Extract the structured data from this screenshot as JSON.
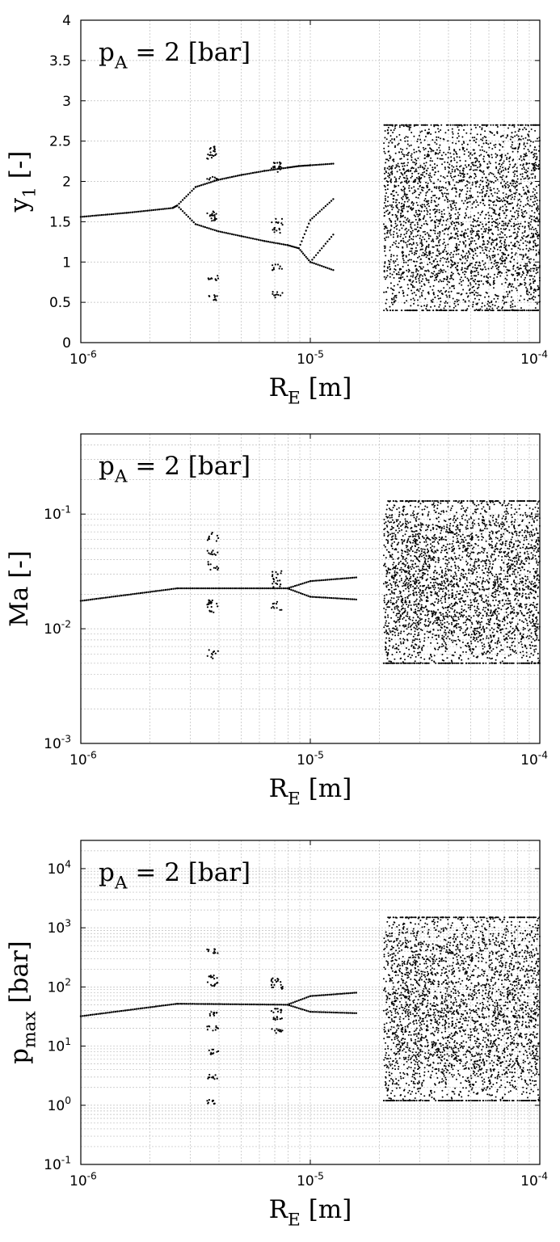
{
  "chart_data": [
    {
      "type": "scatter",
      "annotation": {
        "base": "p",
        "sub": "A",
        "rest": " = 2 [bar]"
      },
      "xlabel": {
        "base": "R",
        "sub": "E",
        "rest": " [m]"
      },
      "ylabel": {
        "base": "y",
        "sub": "1",
        "rest": " [-]"
      },
      "xscale": "log",
      "yscale": "linear",
      "xlim": [
        1e-06,
        0.0001
      ],
      "ylim": [
        0,
        4
      ],
      "xticks": [
        {
          "v": 1e-06,
          "label": "10",
          "exp": "-6"
        },
        {
          "v": 1e-05,
          "label": "10",
          "exp": "-5"
        },
        {
          "v": 0.0001,
          "label": "10",
          "exp": "-4"
        }
      ],
      "yticks": [
        {
          "v": 0,
          "label": "0"
        },
        {
          "v": 0.5,
          "label": "0.5"
        },
        {
          "v": 1,
          "label": "1"
        },
        {
          "v": 1.5,
          "label": "1.5"
        },
        {
          "v": 2,
          "label": "2"
        },
        {
          "v": 2.5,
          "label": "2.5"
        },
        {
          "v": 3,
          "label": "3"
        },
        {
          "v": 3.5,
          "label": "3.5"
        },
        {
          "v": 4,
          "label": "4"
        }
      ],
      "grid": true,
      "series": [
        {
          "values": [
            {
              "logR": -6.0,
              "y": [
                1.56
              ]
            },
            {
              "logR": -5.8,
              "y": [
                1.61
              ]
            },
            {
              "logR": -5.6,
              "y": [
                1.67
              ]
            },
            {
              "logR": -5.58,
              "y": [
                1.7
              ]
            },
            {
              "logR": -5.5,
              "y": [
                1.93,
                1.47
              ]
            },
            {
              "logR": -5.4,
              "y": [
                2.02,
                1.38
              ]
            },
            {
              "logR": -5.3,
              "y": [
                2.08,
                1.32
              ]
            },
            {
              "logR": -5.2,
              "y": [
                2.13,
                1.26
              ]
            },
            {
              "logR": -5.1,
              "y": [
                2.17,
                1.21
              ]
            },
            {
              "logR": -5.05,
              "y": [
                2.19,
                1.17
              ]
            },
            {
              "logR": -5.0,
              "y": [
                2.2,
                1.52,
                1.0
              ]
            },
            {
              "logR": -4.9,
              "y": [
                2.22,
                1.78,
                1.34,
                0.9
              ]
            }
          ]
        },
        {
          "values": [
            {
              "logR": -5.4,
              "y": [
                0.55,
                0.8,
                1.55,
                1.6,
                2.02,
                2.3,
                2.4
              ]
            },
            {
              "logR": -5.12,
              "y": [
                0.6,
                0.93,
                1.4,
                1.5,
                2.15,
                2.2
              ]
            }
          ]
        },
        {
          "values": [
            {
              "logR_range": [
                -4.68,
                -4.0
              ],
              "y_range": [
                0.4,
                2.7
              ]
            }
          ]
        }
      ]
    },
    {
      "type": "scatter",
      "annotation": {
        "base": "p",
        "sub": "A",
        "rest": " = 2 [bar]"
      },
      "xlabel": {
        "base": "R",
        "sub": "E",
        "rest": " [m]"
      },
      "ylabel": {
        "base": "Ma [-]",
        "sub": "",
        "rest": ""
      },
      "xscale": "log",
      "yscale": "log",
      "xlim": [
        1e-06,
        0.0001
      ],
      "ylim": [
        0.001,
        0.5
      ],
      "xticks": [
        {
          "v": 1e-06,
          "label": "10",
          "exp": "-6"
        },
        {
          "v": 1e-05,
          "label": "10",
          "exp": "-5"
        },
        {
          "v": 0.0001,
          "label": "10",
          "exp": "-4"
        }
      ],
      "yticks": [
        {
          "v": 0.001,
          "label": "10",
          "exp": "-3"
        },
        {
          "v": 0.01,
          "label": "10",
          "exp": "-2"
        },
        {
          "v": 0.1,
          "label": "10",
          "exp": "-1"
        }
      ],
      "grid": true,
      "series": [
        {
          "values": [
            {
              "logR": -6.0,
              "y": [
                0.0175
              ]
            },
            {
              "logR": -5.58,
              "y": [
                0.0225
              ]
            },
            {
              "logR": -5.1,
              "y": [
                0.0225
              ]
            },
            {
              "logR": -5.0,
              "y": [
                0.026,
                0.019
              ]
            },
            {
              "logR": -4.8,
              "y": [
                0.028,
                0.018
              ]
            }
          ]
        },
        {
          "values": [
            {
              "logR": -5.4,
              "y": [
                0.006,
                0.015,
                0.017,
                0.035,
                0.045,
                0.063
              ]
            },
            {
              "logR": -5.12,
              "y": [
                0.016,
                0.025,
                0.03
              ]
            }
          ]
        },
        {
          "values": [
            {
              "logR_range": [
                -4.68,
                -4.0
              ],
              "y_range": [
                0.005,
                0.13
              ]
            }
          ]
        }
      ]
    },
    {
      "type": "scatter",
      "annotation": {
        "base": "p",
        "sub": "A",
        "rest": " = 2 [bar]"
      },
      "xlabel": {
        "base": "R",
        "sub": "E",
        "rest": " [m]"
      },
      "ylabel": {
        "base": "p",
        "sub": "max",
        "rest": " [bar]"
      },
      "xscale": "log",
      "yscale": "log",
      "xlim": [
        1e-06,
        0.0001
      ],
      "ylim": [
        0.1,
        30000
      ],
      "xticks": [
        {
          "v": 1e-06,
          "label": "10",
          "exp": "-6"
        },
        {
          "v": 1e-05,
          "label": "10",
          "exp": "-5"
        },
        {
          "v": 0.0001,
          "label": "10",
          "exp": "-4"
        }
      ],
      "yticks": [
        {
          "v": 0.1,
          "label": "10",
          "exp": "-1"
        },
        {
          "v": 1,
          "label": "10",
          "exp": "0"
        },
        {
          "v": 10,
          "label": "10",
          "exp": "1"
        },
        {
          "v": 100,
          "label": "10",
          "exp": "2"
        },
        {
          "v": 1000,
          "label": "10",
          "exp": "3"
        },
        {
          "v": 10000,
          "label": "10",
          "exp": "4"
        }
      ],
      "grid": true,
      "series": [
        {
          "values": [
            {
              "logR": -6.0,
              "y": [
                32
              ]
            },
            {
              "logR": -5.58,
              "y": [
                52
              ]
            },
            {
              "logR": -5.1,
              "y": [
                50
              ]
            },
            {
              "logR": -5.0,
              "y": [
                70,
                38
              ]
            },
            {
              "logR": -4.8,
              "y": [
                80,
                36
              ]
            }
          ]
        },
        {
          "values": [
            {
              "logR": -5.4,
              "y": [
                1.15,
                3,
                8,
                20,
                35,
                110,
                150,
                400
              ]
            },
            {
              "logR": -5.12,
              "y": [
                18,
                30,
                40,
                100,
                130
              ]
            }
          ]
        },
        {
          "values": [
            {
              "logR_range": [
                -4.68,
                -4.0
              ],
              "y_range": [
                1.2,
                1500
              ]
            }
          ]
        }
      ]
    }
  ]
}
